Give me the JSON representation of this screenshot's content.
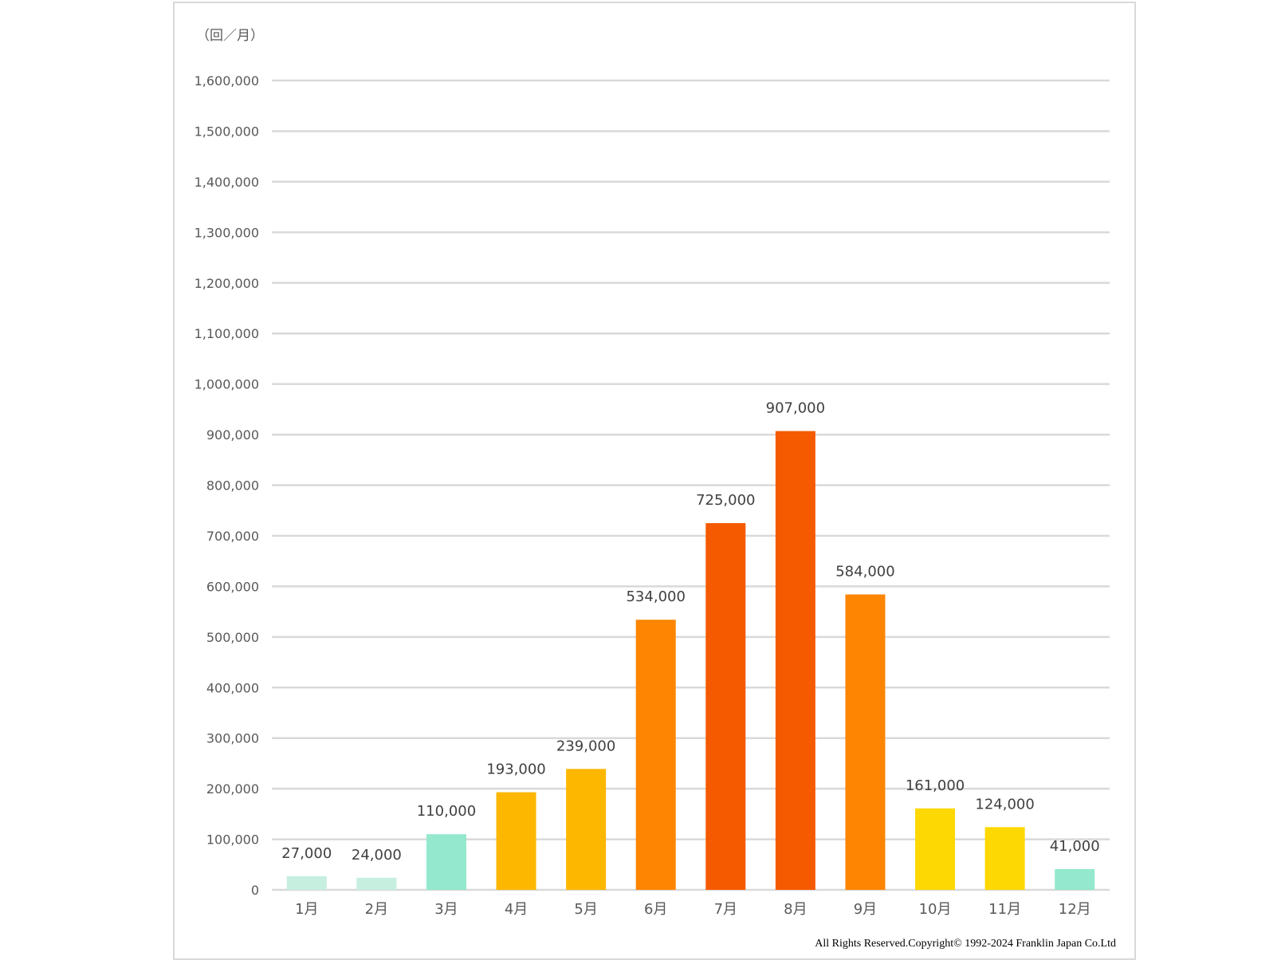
{
  "chart_data": {
    "type": "bar",
    "unit_label": "（回／月）",
    "categories": [
      "1月",
      "2月",
      "3月",
      "4月",
      "5月",
      "6月",
      "7月",
      "8月",
      "9月",
      "10月",
      "11月",
      "12月"
    ],
    "values": [
      27000,
      24000,
      110000,
      193000,
      239000,
      534000,
      725000,
      907000,
      584000,
      161000,
      124000,
      41000
    ],
    "data_labels": [
      "27,000",
      "24,000",
      "110,000",
      "193,000",
      "239,000",
      "534,000",
      "725,000",
      "907,000",
      "584,000",
      "161,000",
      "124,000",
      "41,000"
    ],
    "bar_colors": [
      "#c6efe0",
      "#c6efe0",
      "#93e8cd",
      "#fdb701",
      "#fdb701",
      "#fe8501",
      "#f55a01",
      "#f55a01",
      "#fe8501",
      "#fed802",
      "#fed802",
      "#93e8cd"
    ],
    "yticks": [
      0,
      100000,
      200000,
      300000,
      400000,
      500000,
      600000,
      700000,
      800000,
      900000,
      1000000,
      1100000,
      1200000,
      1300000,
      1400000,
      1500000,
      1600000
    ],
    "ytick_labels": [
      "0",
      "100,000",
      "200,000",
      "300,000",
      "400,000",
      "500,000",
      "600,000",
      "700,000",
      "800,000",
      "900,000",
      "1,000,000",
      "1,100,000",
      "1,200,000",
      "1,300,000",
      "1,400,000",
      "1,500,000",
      "1,600,000"
    ],
    "ylim": [
      0,
      1600000
    ],
    "grid": true,
    "grid_color": "#d9d9d9",
    "title": "",
    "xlabel": "",
    "ylabel": ""
  },
  "footer": {
    "copyright": "All Rights Reserved.Copyright©  1992-2024 Franklin Japan Co.Ltd"
  }
}
